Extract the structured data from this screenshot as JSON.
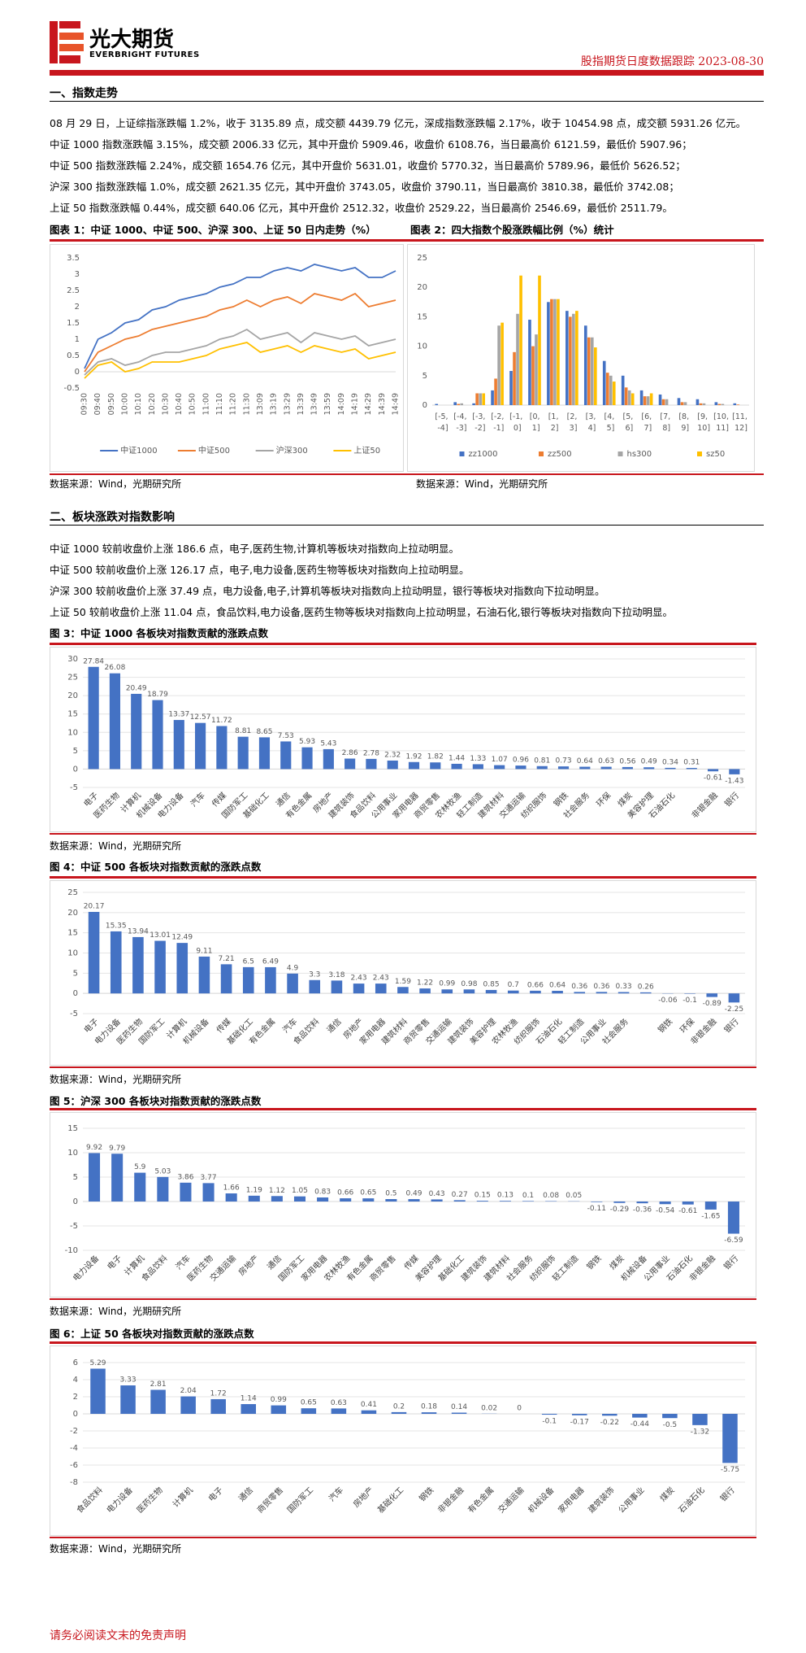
{
  "header": {
    "logo_cn": "光大期货",
    "logo_en": "EVERBRIGHT FUTURES",
    "report": "股指期货日度数据跟踪",
    "date": "2023-08-30"
  },
  "section1": {
    "title": "一、指数走势",
    "paragraphs": [
      "08 月 29 日，上证综指涨跌幅 1.2%，收于 3135.89 点，成交额 4439.79 亿元，深成指数涨跌幅 2.17%，收于 10454.98 点，成交额 5931.26 亿元。",
      "中证 1000 指数涨跌幅 3.15%，成交额 2006.33 亿元，其中开盘价 5909.46，收盘价 6108.76，当日最高价 6121.59，最低价 5907.96；",
      "中证 500 指数涨跌幅 2.24%，成交额 1654.76 亿元，其中开盘价 5631.01，收盘价 5770.32，当日最高价 5789.96，最低价 5626.52；",
      "沪深 300 指数涨跌幅 1.0%，成交额 2621.35 亿元，其中开盘价 3743.05，收盘价 3790.11，当日最高价 3810.38，最低价 3742.08；",
      "上证 50 指数涨跌幅 0.44%，成交额 640.06 亿元，其中开盘价 2512.32，收盘价 2529.22，当日最高价 2546.69，最低价 2511.79。"
    ]
  },
  "section2": {
    "title": "二、板块涨跌对指数影响",
    "paragraphs": [
      "中证 1000 较前收盘价上涨 186.6 点，电子,医药生物,计算机等板块对指数向上拉动明显。",
      "中证 500 较前收盘价上涨 126.17 点，电子,电力设备,医药生物等板块对指数向上拉动明显。",
      "沪深 300 较前收盘价上涨 37.49 点，电力设备,电子,计算机等板块对指数向上拉动明显，银行等板块对指数向下拉动明显。",
      "上证 50 较前收盘价上涨 11.04 点，食品饮料,电力设备,医药生物等板块对指数向上拉动明显，石油石化,银行等板块对指数向下拉动明显。"
    ]
  },
  "footer": "请务必阅读文末的免责声明",
  "chart_data": [
    {
      "type": "line",
      "title": "图表 1：中证 1000、中证 500、沪深 300、上证 50 日内走势（%）",
      "source": "数据来源：Wind，光期研究所",
      "categories": [
        "09:30",
        "09:40",
        "09:50",
        "10:00",
        "10:10",
        "10:20",
        "10:30",
        "10:40",
        "10:50",
        "11:00",
        "11:10",
        "11:20",
        "11:30",
        "13:09",
        "13:19",
        "13:29",
        "13:39",
        "13:49",
        "13:59",
        "14:09",
        "14:19",
        "14:29",
        "14:39",
        "14:49"
      ],
      "series": [
        {
          "name": "中证1000",
          "color": "#4472c4",
          "values": [
            0.1,
            1.0,
            1.2,
            1.5,
            1.6,
            1.9,
            2.0,
            2.2,
            2.3,
            2.4,
            2.6,
            2.7,
            2.9,
            2.9,
            3.1,
            3.2,
            3.1,
            3.3,
            3.2,
            3.1,
            3.2,
            2.9,
            2.9,
            3.1
          ]
        },
        {
          "name": "中证500",
          "color": "#ed7d31",
          "values": [
            0,
            0.6,
            0.8,
            1.0,
            1.1,
            1.3,
            1.4,
            1.5,
            1.6,
            1.7,
            1.9,
            2.0,
            2.2,
            2.0,
            2.2,
            2.3,
            2.1,
            2.4,
            2.3,
            2.2,
            2.4,
            2.0,
            2.1,
            2.2
          ]
        },
        {
          "name": "沪深300",
          "color": "#a5a5a5",
          "values": [
            -0.1,
            0.3,
            0.4,
            0.2,
            0.3,
            0.5,
            0.6,
            0.6,
            0.7,
            0.8,
            1.0,
            1.1,
            1.3,
            1.0,
            1.1,
            1.2,
            0.9,
            1.2,
            1.1,
            1.0,
            1.1,
            0.8,
            0.9,
            1.0
          ]
        },
        {
          "name": "上证50",
          "color": "#ffc000",
          "values": [
            -0.2,
            0.2,
            0.3,
            0.0,
            0.1,
            0.3,
            0.3,
            0.3,
            0.4,
            0.5,
            0.7,
            0.8,
            0.9,
            0.6,
            0.7,
            0.8,
            0.6,
            0.8,
            0.7,
            0.6,
            0.7,
            0.4,
            0.5,
            0.6
          ]
        }
      ],
      "ylim": [
        -0.5,
        3.5
      ],
      "yticks": [
        -0.5,
        0,
        0.5,
        1,
        1.5,
        2,
        2.5,
        3,
        3.5
      ],
      "grid": false
    },
    {
      "type": "bar",
      "title": "图表 2：四大指数个股涨跌幅比例（%）统计",
      "source": "数据来源：Wind，光期研究所",
      "categories": [
        "[-5, -4]",
        "[-4, -3]",
        "[-3, -2]",
        "[-2, -1]",
        "[-1, 0]",
        "[0, 1]",
        "[1, 2]",
        "[2, 3]",
        "[3, 4]",
        "[4, 5]",
        "[5, 6]",
        "[6, 7]",
        "[7, 8]",
        "[8, 9]",
        "[9, 10]",
        "[10, 11]",
        "[11, 12]"
      ],
      "series": [
        {
          "name": "zz1000",
          "color": "#4472c4",
          "values": [
            0.2,
            0.5,
            0.3,
            2.5,
            5.8,
            14.5,
            17.5,
            16,
            13.5,
            7.5,
            5,
            2.5,
            1.8,
            1.2,
            1,
            0.5,
            0.3
          ]
        },
        {
          "name": "zz500",
          "color": "#ed7d31",
          "values": [
            0,
            0.2,
            2,
            4.5,
            9,
            10,
            18,
            15,
            11.5,
            5.5,
            3,
            1.5,
            1,
            0.5,
            0.3,
            0.2,
            0.1
          ]
        },
        {
          "name": "hs300",
          "color": "#a5a5a5",
          "values": [
            0,
            0.3,
            2,
            13.5,
            15.5,
            12,
            18,
            15.5,
            11.5,
            5,
            2.5,
            1.5,
            1,
            0.5,
            0.3,
            0.2,
            0
          ]
        },
        {
          "name": "sz50",
          "color": "#ffc000",
          "values": [
            0,
            0,
            2,
            14,
            22,
            22,
            18,
            16,
            9.8,
            4,
            2,
            2,
            0,
            0,
            0,
            0,
            0
          ]
        }
      ],
      "ylim": [
        0,
        25
      ],
      "yticks": [
        0,
        5,
        10,
        15,
        20,
        25
      ],
      "grid": false
    },
    {
      "type": "bar",
      "title": "图 3：中证 1000 各板块对指数贡献的涨跌点数",
      "source": "数据来源：Wind，光期研究所",
      "color": "#4472c4",
      "categories": [
        "电子",
        "医药生物",
        "计算机",
        "机械设备",
        "电力设备",
        "汽车",
        "传媒",
        "国防军工",
        "基础化工",
        "通信",
        "有色金属",
        "房地产",
        "建筑装饰",
        "食品饮料",
        "公用事业",
        "家用电器",
        "商贸零售",
        "农林牧渔",
        "轻工制造",
        "建筑材料",
        "交通运输",
        "纺织服饰",
        "钢铁",
        "社会服务",
        "环保",
        "煤炭",
        "美容护理",
        "石油石化",
        null,
        "非银金融",
        "银行"
      ],
      "values": [
        27.84,
        26.08,
        20.49,
        18.79,
        13.37,
        12.57,
        11.72,
        8.81,
        8.65,
        7.53,
        5.93,
        5.43,
        2.86,
        2.78,
        2.32,
        1.92,
        1.82,
        1.44,
        1.33,
        1.07,
        0.96,
        0.81,
        0.73,
        0.64,
        0.63,
        0.56,
        0.49,
        0.34,
        0.31,
        -0.61,
        -1.43
      ],
      "ylim": [
        -5,
        30
      ],
      "yticks": [
        -5,
        0,
        5,
        10,
        15,
        20,
        25,
        30
      ],
      "grid": true
    },
    {
      "type": "bar",
      "title": "图 4：中证 500 各板块对指数贡献的涨跌点数",
      "source": "数据来源：Wind，光期研究所",
      "color": "#4472c4",
      "categories": [
        "电子",
        "电力设备",
        "医药生物",
        "国防军工",
        "计算机",
        "机械设备",
        "传媒",
        "基础化工",
        "有色金属",
        "汽车",
        "食品饮料",
        "通信",
        "房地产",
        "家用电器",
        "建筑材料",
        "商贸零售",
        "交通运输",
        "建筑装饰",
        "美容护理",
        "农林牧渔",
        "纺织服饰",
        "石油石化",
        "轻工制造",
        "公用事业",
        "社会服务",
        null,
        "钢铁",
        "环保",
        "非银金融",
        "银行"
      ],
      "values": [
        20.17,
        15.35,
        13.94,
        13.01,
        12.49,
        9.11,
        7.21,
        6.5,
        6.49,
        4.9,
        3.3,
        3.18,
        2.43,
        2.43,
        1.59,
        1.22,
        0.99,
        0.98,
        0.85,
        0.7,
        0.66,
        0.64,
        0.36,
        0.36,
        0.33,
        0.26,
        -0.06,
        -0.1,
        -0.89,
        -2.25
      ],
      "ylim": [
        -5,
        25
      ],
      "yticks": [
        -5,
        0,
        5,
        10,
        15,
        20,
        25
      ],
      "grid": true
    },
    {
      "type": "bar",
      "title": "图 5：沪深 300 各板块对指数贡献的涨跌点数",
      "source": "数据来源：Wind，光期研究所",
      "color": "#4472c4",
      "categories": [
        "电力设备",
        "电子",
        "计算机",
        "食品饮料",
        "汽车",
        "医药生物",
        "交通运输",
        "房地产",
        "通信",
        "国防军工",
        "家用电器",
        "农林牧渔",
        "有色金属",
        "商贸零售",
        "传媒",
        "美容护理",
        "基础化工",
        "建筑装饰",
        "建筑材料",
        "社会服务",
        "纺织服饰",
        "轻工制造",
        "钢铁",
        "煤炭",
        "机械设备",
        "公用事业",
        "石油石化",
        "非银金融",
        "银行"
      ],
      "values": [
        9.92,
        9.79,
        5.9,
        5.03,
        3.86,
        3.77,
        1.66,
        1.19,
        1.12,
        1.05,
        0.83,
        0.66,
        0.65,
        0.5,
        0.49,
        0.43,
        0.27,
        0.15,
        0.13,
        0.1,
        0.08,
        0.05,
        -0.11,
        -0.29,
        -0.36,
        -0.54,
        -0.61,
        -1.65,
        -6.59
      ],
      "ylim": [
        -10,
        15
      ],
      "yticks": [
        -10,
        -5,
        0,
        5,
        10,
        15
      ],
      "grid": true
    },
    {
      "type": "bar",
      "title": "图 6：上证 50 各板块对指数贡献的涨跌点数",
      "source": "数据来源：Wind，光期研究所",
      "color": "#4472c4",
      "categories": [
        "食品饮料",
        "电力设备",
        "医药生物",
        "计算机",
        "电子",
        "通信",
        "商贸零售",
        "国防军工",
        "汽车",
        "房地产",
        "基础化工",
        "钢铁",
        "非银金融",
        "有色金属",
        "交通运输",
        "机械设备",
        "家用电器",
        "建筑装饰",
        "公用事业",
        "煤炭",
        "石油石化",
        "银行"
      ],
      "values": [
        5.29,
        3.33,
        2.81,
        2.04,
        1.72,
        1.14,
        0.99,
        0.65,
        0.63,
        0.41,
        0.2,
        0.18,
        0.14,
        0.02,
        0,
        -0.1,
        -0.17,
        -0.22,
        -0.44,
        -0.5,
        -1.32,
        -5.75
      ],
      "ylim": [
        -8,
        6
      ],
      "yticks": [
        -8,
        -6,
        -4,
        -2,
        0,
        2,
        4,
        6
      ],
      "grid": true
    }
  ]
}
